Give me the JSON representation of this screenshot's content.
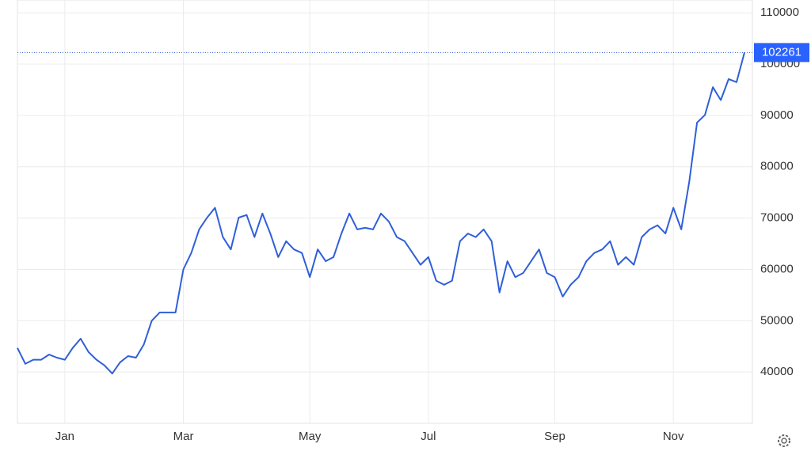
{
  "chart_data": {
    "type": "line",
    "color": "#2f5fd8",
    "grid": true,
    "categories": [
      null,
      null,
      null,
      null,
      null,
      null,
      "Jan",
      null,
      null,
      null,
      null,
      null,
      null,
      null,
      null,
      null,
      null,
      null,
      null,
      null,
      null,
      "Mar",
      null,
      null,
      null,
      null,
      null,
      null,
      null,
      null,
      null,
      null,
      null,
      null,
      null,
      null,
      null,
      "May",
      null,
      null,
      null,
      null,
      null,
      null,
      null,
      null,
      null,
      null,
      null,
      null,
      null,
      null,
      "Jul",
      null,
      null,
      null,
      null,
      null,
      null,
      null,
      null,
      null,
      null,
      null,
      null,
      null,
      null,
      null,
      "Sep",
      null,
      null,
      null,
      null,
      null,
      null,
      null,
      null,
      null,
      null,
      null,
      null,
      null,
      null,
      "Nov",
      null,
      null,
      null,
      null,
      null,
      null,
      null,
      null,
      null
    ],
    "values": [
      44700,
      41600,
      42400,
      42400,
      43400,
      42800,
      42400,
      44700,
      46500,
      43900,
      42400,
      41300,
      39700,
      41900,
      43100,
      42800,
      45400,
      50000,
      51600,
      51600,
      51600,
      60000,
      63200,
      67800,
      70100,
      72000,
      66300,
      63900,
      70100,
      70600,
      66300,
      70900,
      67000,
      62400,
      65500,
      63900,
      63200,
      58500,
      63900,
      61600,
      62400,
      67000,
      70900,
      67800,
      68100,
      67800,
      70900,
      69300,
      66300,
      65500,
      63200,
      60900,
      62400,
      57800,
      57000,
      57800,
      65500,
      67000,
      66300,
      67800,
      65500,
      55500,
      61600,
      58500,
      59300,
      61600,
      63900,
      59300,
      58500,
      54700,
      57000,
      58500,
      61600,
      63200,
      63900,
      65500,
      60900,
      62400,
      60900,
      66300,
      67800,
      68600,
      67000,
      72000,
      67800,
      77000,
      88600,
      90100,
      95500,
      93000,
      97100,
      96500,
      102261
    ],
    "ylim": [
      30000,
      112500
    ],
    "yticks": [
      40000,
      50000,
      60000,
      70000,
      80000,
      90000,
      100000,
      110000
    ]
  }
}
